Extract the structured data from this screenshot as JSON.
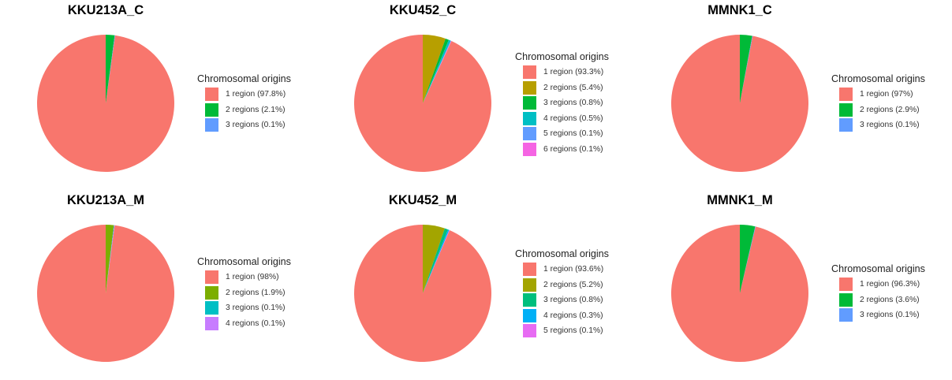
{
  "chart_data": [
    {
      "type": "pie",
      "title": "KKU213A_C",
      "legend_title": "Chromosomal origins",
      "legend_placement": "right",
      "slices": [
        {
          "label": "1 region (97.8%)",
          "value": 97.8,
          "color": "#F8766D"
        },
        {
          "label": "2 regions (2.1%)",
          "value": 2.1,
          "color": "#00BA38"
        },
        {
          "label": "3 regions (0.1%)",
          "value": 0.1,
          "color": "#619CFF"
        }
      ]
    },
    {
      "type": "pie",
      "title": "KKU452_C",
      "legend_title": "Chromosomal origins",
      "legend_placement": "right",
      "slices": [
        {
          "label": "1 region (93.3%)",
          "value": 93.3,
          "color": "#F8766D"
        },
        {
          "label": "2 regions (5.4%)",
          "value": 5.4,
          "color": "#B79F00"
        },
        {
          "label": "3 regions (0.8%)",
          "value": 0.8,
          "color": "#00BA38"
        },
        {
          "label": "4 regions (0.5%)",
          "value": 0.5,
          "color": "#00BFC4"
        },
        {
          "label": "5 regions (0.1%)",
          "value": 0.1,
          "color": "#619CFF"
        },
        {
          "label": "6 regions (0.1%)",
          "value": 0.1,
          "color": "#F564E3"
        }
      ]
    },
    {
      "type": "pie",
      "title": "MMNK1_C",
      "legend_title": "Chromosomal origins",
      "legend_placement": "right",
      "slices": [
        {
          "label": "1 region (97%)",
          "value": 97,
          "color": "#F8766D"
        },
        {
          "label": "2 regions (2.9%)",
          "value": 2.9,
          "color": "#00BA38"
        },
        {
          "label": "3 regions (0.1%)",
          "value": 0.1,
          "color": "#619CFF"
        }
      ]
    },
    {
      "type": "pie",
      "title": "KKU213A_M",
      "legend_title": "Chromosomal origins",
      "legend_placement": "right",
      "slices": [
        {
          "label": "1 region (98%)",
          "value": 98,
          "color": "#F8766D"
        },
        {
          "label": "2 regions (1.9%)",
          "value": 1.9,
          "color": "#7CAE00"
        },
        {
          "label": "3 regions (0.1%)",
          "value": 0.1,
          "color": "#00BFC4"
        },
        {
          "label": "4 regions (0.1%)",
          "value": 0.1,
          "color": "#C77CFF"
        }
      ]
    },
    {
      "type": "pie",
      "title": "KKU452_M",
      "legend_title": "Chromosomal origins",
      "legend_placement": "right",
      "slices": [
        {
          "label": "1 region (93.6%)",
          "value": 93.6,
          "color": "#F8766D"
        },
        {
          "label": "2 regions (5.2%)",
          "value": 5.2,
          "color": "#A3A500"
        },
        {
          "label": "3 regions (0.8%)",
          "value": 0.8,
          "color": "#00BF7D"
        },
        {
          "label": "4 regions (0.3%)",
          "value": 0.3,
          "color": "#00B0F6"
        },
        {
          "label": "5 regions (0.1%)",
          "value": 0.1,
          "color": "#E76BF3"
        }
      ]
    },
    {
      "type": "pie",
      "title": "MMNK1_M",
      "legend_title": "Chromosomal origins",
      "legend_placement": "right",
      "slices": [
        {
          "label": "1 region (96.3%)",
          "value": 96.3,
          "color": "#F8766D"
        },
        {
          "label": "2 regions (3.6%)",
          "value": 3.6,
          "color": "#00BA38"
        },
        {
          "label": "3 regions (0.1%)",
          "value": 0.1,
          "color": "#619CFF"
        }
      ]
    }
  ]
}
